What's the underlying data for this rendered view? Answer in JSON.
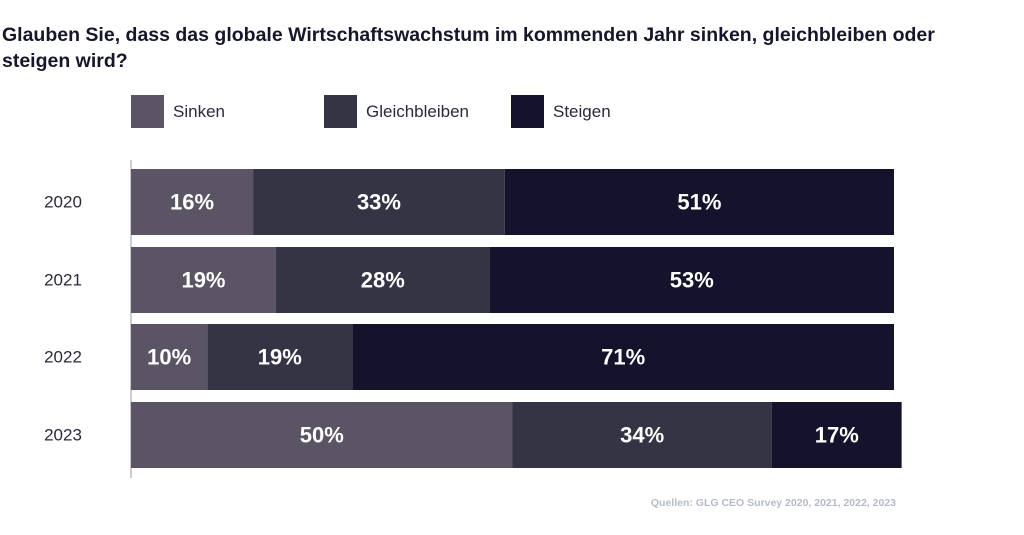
{
  "title": "Glauben Sie, dass das globale Wirtschaftswachstum im kommenden Jahr sinken, gleichbleiben oder steigen wird?",
  "source": "Quellen: GLG CEO Survey 2020, 2021, 2022, 2023",
  "chart_data": {
    "type": "bar",
    "orientation": "horizontal",
    "stacked": true,
    "unit": "%",
    "categories": [
      "2020",
      "2021",
      "2022",
      "2023"
    ],
    "series": [
      {
        "name": "Sinken",
        "color": "#5a5465",
        "values": [
          16,
          19,
          10,
          50
        ]
      },
      {
        "name": "Gleichbleiben",
        "color": "#353445",
        "values": [
          33,
          28,
          19,
          34
        ]
      },
      {
        "name": "Steigen",
        "color": "#14132b",
        "values": [
          51,
          53,
          71,
          17
        ]
      }
    ],
    "xlim": [
      0,
      100
    ],
    "data_labels": [
      [
        "16%",
        "33%",
        "51%"
      ],
      [
        "19%",
        "28%",
        "53%"
      ],
      [
        "10%",
        "19%",
        "71%"
      ],
      [
        "50%",
        "34%",
        "17%"
      ]
    ],
    "legend_position": "top-left",
    "grid": false
  }
}
